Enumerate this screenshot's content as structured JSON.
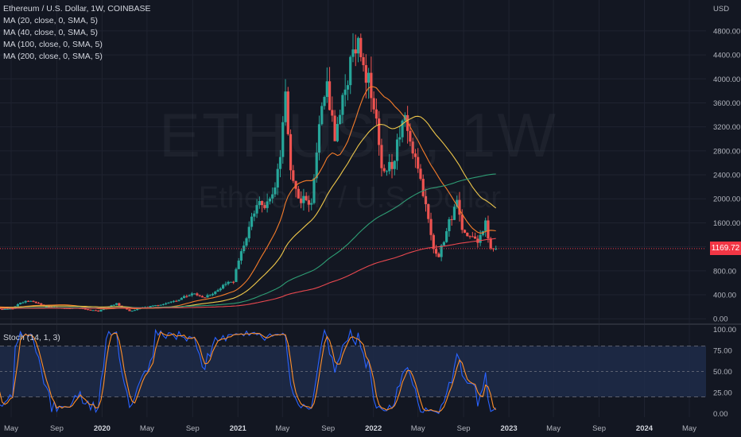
{
  "header": {
    "title": "Ethereum / U.S. Dollar, 1W, COINBASE",
    "indicators": [
      "MA (20, close, 0, SMA, 5)",
      "MA (40, close, 0, SMA, 5)",
      "MA (100, close, 0, SMA, 5)",
      "MA (200, close, 0, SMA, 5)"
    ]
  },
  "watermark": {
    "symbol": "ETHUSD, 1W",
    "description": "Ethereum / U.S. Dollar"
  },
  "price_tag": "1169.72",
  "stoch_label": "Stoch (14, 1, 3)",
  "colors": {
    "background": "#131722",
    "up": "#26a69a",
    "down": "#ef5350",
    "ma20": "#f57c2a",
    "ma40": "#f0c84a",
    "ma100": "#2e9e75",
    "ma200": "#e8484f",
    "stoch_k": "#2962ff",
    "stoch_d": "#ff8f2a",
    "stoch_band": "#1e2b49"
  },
  "chart_data": [
    {
      "type": "candlestick",
      "title": "Ethereum / U.S. Dollar, 1W, COINBASE",
      "y_axis_label": "USD",
      "y_ticks": [
        0,
        400,
        800,
        1200,
        1600,
        2000,
        2400,
        2800,
        3200,
        3600,
        4000,
        4400,
        4800
      ],
      "y_tick_labels": [
        "0.00",
        "400.00",
        "800.00",
        "1200.00",
        "1600.00",
        "2000.00",
        "2400.00",
        "2800.00",
        "3200.00",
        "3600.00",
        "4000.00",
        "4400.00",
        "4800.00"
      ],
      "ylim": [
        -50,
        5050
      ],
      "x_start": "2019-04-01",
      "x_end": "2024-06-15",
      "x_ticks": [
        {
          "date": "2019-05-01",
          "label": "May"
        },
        {
          "date": "2019-09-01",
          "label": "Sep"
        },
        {
          "date": "2020-01-01",
          "label": "2020"
        },
        {
          "date": "2020-05-01",
          "label": "May"
        },
        {
          "date": "2020-09-01",
          "label": "Sep"
        },
        {
          "date": "2021-01-01",
          "label": "2021"
        },
        {
          "date": "2021-05-01",
          "label": "May"
        },
        {
          "date": "2021-09-01",
          "label": "Sep"
        },
        {
          "date": "2022-01-01",
          "label": "2022"
        },
        {
          "date": "2022-05-01",
          "label": "May"
        },
        {
          "date": "2022-09-01",
          "label": "Sep"
        },
        {
          "date": "2023-01-01",
          "label": "2023"
        },
        {
          "date": "2023-05-01",
          "label": "May"
        },
        {
          "date": "2023-09-01",
          "label": "Sep"
        },
        {
          "date": "2024-01-01",
          "label": "2024"
        },
        {
          "date": "2024-05-01",
          "label": "May"
        }
      ],
      "last_price": 1169.72,
      "anchor_closes": [
        [
          "2019-03-31",
          160
        ],
        [
          "2019-05-05",
          170
        ],
        [
          "2019-05-26",
          265
        ],
        [
          "2019-06-23",
          310
        ],
        [
          "2019-07-21",
          225
        ],
        [
          "2019-08-18",
          195
        ],
        [
          "2019-09-22",
          170
        ],
        [
          "2019-10-27",
          182
        ],
        [
          "2019-11-24",
          150
        ],
        [
          "2019-12-22",
          128
        ],
        [
          "2020-02-09",
          250
        ],
        [
          "2020-03-15",
          125
        ],
        [
          "2020-04-19",
          185
        ],
        [
          "2020-05-31",
          230
        ],
        [
          "2020-07-26",
          320
        ],
        [
          "2020-08-30",
          430
        ],
        [
          "2020-09-27",
          355
        ],
        [
          "2020-10-25",
          410
        ],
        [
          "2020-11-22",
          560
        ],
        [
          "2020-12-20",
          640
        ],
        [
          "2021-01-17",
          1250
        ],
        [
          "2021-02-21",
          1900
        ],
        [
          "2021-03-14",
          1850
        ],
        [
          "2021-04-11",
          2150
        ],
        [
          "2021-04-25",
          2750
        ],
        [
          "2021-05-09",
          3950
        ],
        [
          "2021-05-23",
          2400
        ],
        [
          "2021-06-20",
          2000
        ],
        [
          "2021-07-18",
          1850
        ],
        [
          "2021-08-08",
          3150
        ],
        [
          "2021-08-29",
          3900
        ],
        [
          "2021-09-19",
          3000
        ],
        [
          "2021-10-10",
          3600
        ],
        [
          "2021-10-31",
          4300
        ],
        [
          "2021-11-07",
          4650
        ],
        [
          "2021-11-28",
          4400
        ],
        [
          "2021-12-19",
          3950
        ],
        [
          "2022-01-09",
          3200
        ],
        [
          "2022-01-23",
          2450
        ],
        [
          "2022-02-20",
          2600
        ],
        [
          "2022-03-27",
          3350
        ],
        [
          "2022-04-10",
          3050
        ],
        [
          "2022-05-08",
          2300
        ],
        [
          "2022-05-22",
          1950
        ],
        [
          "2022-06-12",
          1200
        ],
        [
          "2022-06-26",
          1050
        ],
        [
          "2022-07-24",
          1600
        ],
        [
          "2022-08-14",
          1950
        ],
        [
          "2022-08-28",
          1550
        ],
        [
          "2022-09-18",
          1350
        ],
        [
          "2022-10-09",
          1300
        ],
        [
          "2022-10-30",
          1600
        ],
        [
          "2022-11-13",
          1200
        ],
        [
          "2022-11-27",
          1169.72
        ]
      ],
      "moving_averages": [
        {
          "name": "MA (20, close, 0, SMA, 5)",
          "period": 20,
          "color": "#f57c2a"
        },
        {
          "name": "MA (40, close, 0, SMA, 5)",
          "period": 40,
          "color": "#f0c84a"
        },
        {
          "name": "MA (100, close, 0, SMA, 5)",
          "period": 100,
          "color": "#2e9e75"
        },
        {
          "name": "MA (200, close, 0, SMA, 5)",
          "period": 200,
          "color": "#e8484f"
        }
      ]
    },
    {
      "type": "line",
      "title": "Stoch (14, 1, 3)",
      "y_ticks": [
        0,
        25,
        50,
        75,
        100
      ],
      "y_tick_labels": [
        "0.00",
        "25.00",
        "50.00",
        "75.00",
        "100.00"
      ],
      "ylim": [
        -4,
        104
      ],
      "band": [
        20,
        80
      ],
      "series": [
        {
          "name": "%K",
          "period": 14,
          "color": "#2962ff"
        },
        {
          "name": "%D",
          "smoothing": 3,
          "color": "#ff8f2a"
        }
      ]
    }
  ]
}
